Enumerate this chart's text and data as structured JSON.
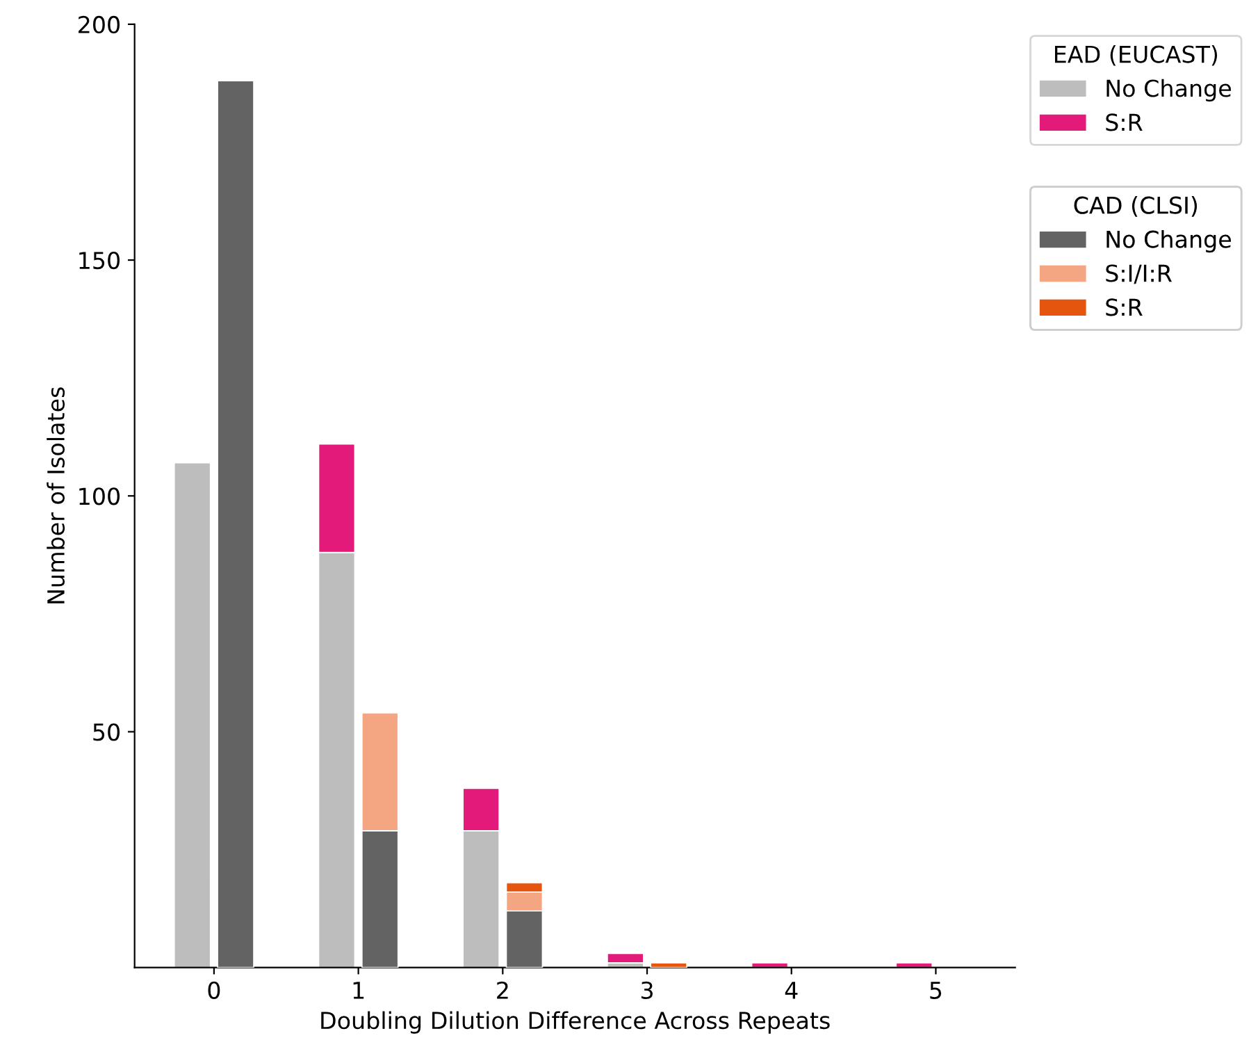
{
  "chart_data": [
    {
      "type": "bar",
      "stacked": true,
      "legend_title": "EAD (EUCAST)",
      "legend": "top right",
      "xlabel": "Doubling Dilution Difference Across Repeats",
      "ylabel": "Number of Isolates",
      "categories": [
        "0",
        "1",
        "2",
        "3",
        "4",
        "5"
      ],
      "ylim": [
        0,
        200
      ],
      "yticks": [
        50,
        100,
        150,
        200
      ],
      "grid": false,
      "series": [
        {
          "name": "No Change",
          "color": "#bdbdbd",
          "values": [
            107,
            88,
            29,
            1,
            0,
            0
          ]
        },
        {
          "name": "S:R",
          "color": "#e31a7a",
          "values": [
            0,
            23,
            9,
            2,
            1,
            1
          ]
        }
      ]
    },
    {
      "type": "bar",
      "stacked": true,
      "legend_title": "CAD (CLSI)",
      "legend": "top right",
      "tick_labels": false,
      "categories": [
        null,
        null,
        null,
        null,
        null,
        null
      ],
      "ylim": [
        0,
        200
      ],
      "yticks": [
        50,
        100,
        150,
        200
      ],
      "grid": false,
      "series": [
        {
          "name": "No Change",
          "color": "#636363",
          "values": [
            188,
            29,
            12,
            0,
            0,
            0
          ]
        },
        {
          "name": "S:I/I:R",
          "color": "#f4a582",
          "values": [
            0,
            25,
            4,
            0,
            0,
            0
          ]
        },
        {
          "name": "S:R",
          "color": "#e6550d",
          "values": [
            0,
            0,
            2,
            1,
            0,
            0
          ]
        }
      ]
    }
  ]
}
